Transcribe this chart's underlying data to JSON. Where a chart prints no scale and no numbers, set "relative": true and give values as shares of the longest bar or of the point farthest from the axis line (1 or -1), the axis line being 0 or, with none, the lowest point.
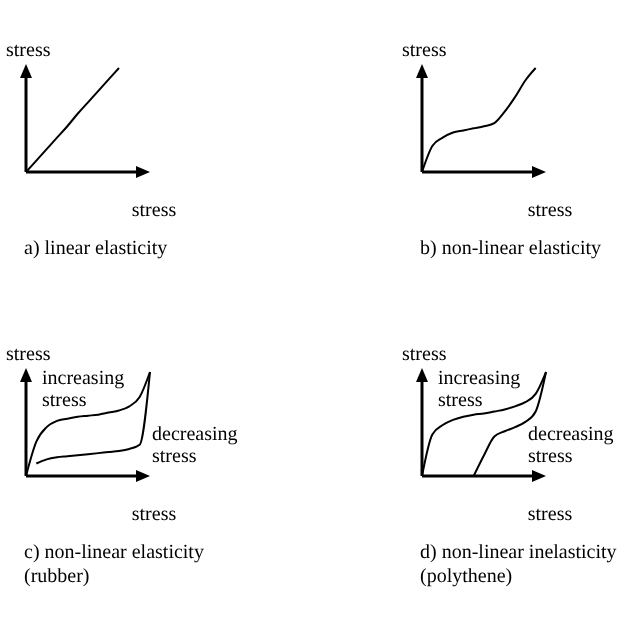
{
  "chart_data": [
    {
      "type": "line",
      "title": "a) linear elasticity",
      "xlabel": "stress",
      "ylabel": "stress",
      "relative": true,
      "categories": [
        null,
        null,
        null,
        null,
        null,
        null,
        null,
        null,
        null,
        null,
        null,
        null,
        null
      ],
      "series": [
        {
          "color": "#000000",
          "values": [
            0,
            0.11,
            0.22,
            0.33,
            0.44,
            0.56,
            0.67,
            0.78,
            0.89,
            1,
            null,
            null,
            null
          ]
        }
      ]
    },
    {
      "type": "line",
      "title": "b) non-linear elasticity",
      "xlabel": "stress",
      "ylabel": "stress",
      "relative": true,
      "categories": [
        null,
        null,
        null,
        null,
        null,
        null,
        null,
        null,
        null,
        null,
        null,
        null,
        null
      ],
      "series": [
        {
          "color": "#000000",
          "values": [
            0,
            0.25,
            0.33,
            0.38,
            0.4,
            0.42,
            0.44,
            0.47,
            0.58,
            0.72,
            0.88,
            1,
            null
          ]
        }
      ]
    },
    {
      "type": "line",
      "title": "c) non-linear elasticity (rubber)",
      "xlabel": "stress",
      "ylabel": "stress",
      "relative": true,
      "categories": [
        null,
        null,
        null,
        null,
        null,
        null,
        null,
        null,
        null,
        null,
        null,
        null,
        null
      ],
      "series": [
        {
          "name": "increasing stress",
          "color": "#000000",
          "values": [
            0,
            0.33,
            0.47,
            0.53,
            0.55,
            0.57,
            0.58,
            0.59,
            0.61,
            0.63,
            0.67,
            0.76,
            1
          ]
        },
        {
          "name": "decreasing stress",
          "color": "#000000",
          "values": [
            null,
            0.12,
            0.16,
            0.18,
            0.19,
            0.2,
            0.21,
            0.22,
            0.23,
            0.24,
            0.26,
            0.3,
            1
          ]
        }
      ]
    },
    {
      "type": "line",
      "title": "d) non-linear inelasticity (polythene)",
      "xlabel": "stress",
      "ylabel": "stress",
      "relative": true,
      "categories": [
        null,
        null,
        null,
        null,
        null,
        null,
        null,
        null,
        null,
        null,
        null,
        null,
        null
      ],
      "series": [
        {
          "name": "increasing stress",
          "color": "#000000",
          "values": [
            0,
            0.4,
            0.49,
            0.54,
            0.57,
            0.59,
            0.6,
            0.62,
            0.64,
            0.67,
            0.71,
            0.79,
            1
          ]
        },
        {
          "name": "decreasing stress",
          "color": "#000000",
          "values": [
            null,
            null,
            null,
            null,
            null,
            0,
            0.2,
            0.38,
            0.43,
            0.47,
            0.52,
            0.62,
            1
          ]
        }
      ]
    }
  ]
}
